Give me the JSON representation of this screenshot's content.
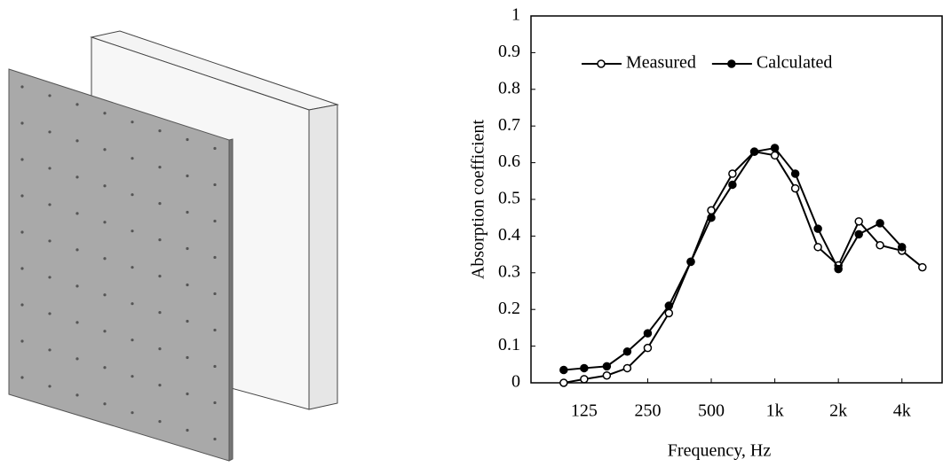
{
  "chart_data": {
    "type": "line",
    "x_label": "Frequency, Hz",
    "y_label": "Absorption coefficient",
    "x": [
      100,
      125,
      160,
      200,
      250,
      315,
      400,
      500,
      630,
      800,
      1000,
      1250,
      1600,
      2000,
      2500,
      3150,
      4000,
      5000
    ],
    "series": [
      {
        "name": "Measured",
        "color": "#000000",
        "marker_fill": "#ffffff",
        "values": [
          0.0,
          0.01,
          0.02,
          0.04,
          0.095,
          0.19,
          0.33,
          0.47,
          0.57,
          0.63,
          0.62,
          0.53,
          0.37,
          0.32,
          0.44,
          0.375,
          0.36,
          0.315
        ]
      },
      {
        "name": "Calculated",
        "color": "#000000",
        "marker_fill": "#000000",
        "values": [
          0.035,
          0.04,
          0.045,
          0.085,
          0.135,
          0.21,
          0.33,
          0.45,
          0.54,
          0.63,
          0.64,
          0.57,
          0.42,
          0.31,
          0.405,
          0.435,
          0.37,
          null
        ]
      }
    ],
    "xlim": [
      70,
      6200
    ],
    "x_log": true,
    "xticks": [
      125,
      250,
      500,
      {
        "value": 1000,
        "label": "1k"
      },
      {
        "value": 2000,
        "label": "2k"
      },
      {
        "value": 4000,
        "label": "4k"
      }
    ],
    "ylim": [
      0,
      1
    ],
    "yticks": [
      0,
      0.1,
      0.2,
      0.3,
      0.4,
      0.5,
      0.6,
      0.7,
      0.8,
      0.9,
      1
    ],
    "legend": "upper left"
  }
}
